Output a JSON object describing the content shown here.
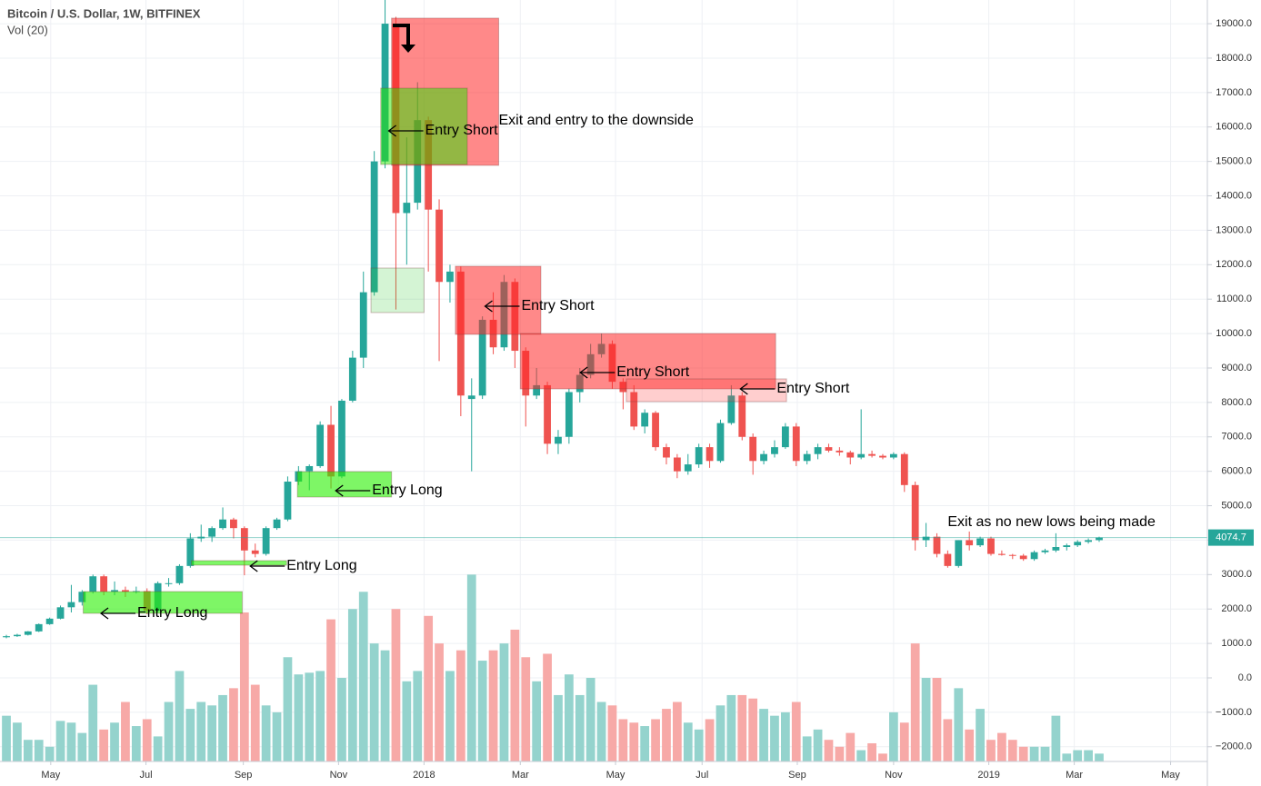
{
  "chart_data": {
    "type": "candlestick",
    "title": "Bitcoin / U.S. Dollar, 1W, BITFINEX",
    "subtitle": "Vol (20)",
    "up_color": "#26a69a",
    "down_color": "#ef5350",
    "volume_up_color": "#94d3cd",
    "volume_down_color": "#f7a9a7",
    "grid": true,
    "open": [
      1180,
      1210,
      1250,
      1350,
      1560,
      1720,
      2050,
      2200,
      2500,
      2950,
      2500,
      2550,
      2500,
      2520,
      1950,
      2750,
      2750,
      3250,
      4050,
      4100,
      4350,
      4600,
      4350,
      3700,
      3600,
      4350,
      4600,
      5700,
      6000,
      6150,
      7350,
      5850,
      8050,
      9300,
      11200,
      15000,
      19000,
      13500,
      13800,
      16200,
      13600,
      11500,
      11800,
      8100,
      8200,
      10400,
      9600,
      11500,
      9500,
      8200,
      8500,
      6800,
      7000,
      8300,
      8800,
      9400,
      9700,
      8600,
      8300,
      7300,
      7700,
      6700,
      6400,
      6000,
      6200,
      6700,
      6300,
      7400,
      8200,
      7000,
      6300,
      6500,
      6700,
      7300,
      6300,
      6500,
      6700,
      6600,
      6550,
      6400,
      6500,
      6450,
      6400,
      6500,
      5600,
      4000,
      4100,
      3600,
      3250,
      4000,
      3850,
      4050,
      3600,
      3570,
      3550,
      3450,
      3650,
      3700,
      3800,
      3850,
      3950,
      4000
    ],
    "high": [
      1250,
      1280,
      1360,
      1580,
      1750,
      2100,
      2700,
      2550,
      3000,
      3000,
      2800,
      2650,
      2650,
      2600,
      2800,
      2900,
      3300,
      4200,
      4450,
      4400,
      4950,
      4650,
      4400,
      3900,
      4400,
      4650,
      5850,
      6150,
      6200,
      7450,
      7900,
      8100,
      9500,
      11800,
      15300,
      19700,
      19200,
      15700,
      17300,
      16300,
      13900,
      12000,
      11950,
      8700,
      10500,
      11200,
      11700,
      11600,
      9600,
      9000,
      8600,
      7200,
      8400,
      9000,
      9700,
      10000,
      9800,
      8700,
      8500,
      7800,
      7750,
      6800,
      6500,
      6500,
      6800,
      6800,
      7500,
      8500,
      8300,
      7100,
      6600,
      6900,
      7400,
      7400,
      6600,
      6800,
      6800,
      6700,
      6600,
      7800,
      6600,
      6500,
      6550,
      6550,
      5700,
      4500,
      4200,
      3700,
      4000,
      4250,
      4100,
      4100,
      3700,
      3600,
      3600,
      3700,
      3750,
      4200,
      3900,
      4000,
      4050,
      4100
    ],
    "low": [
      1150,
      1190,
      1230,
      1330,
      1540,
      1700,
      1900,
      2100,
      2450,
      2400,
      2400,
      2350,
      2450,
      1850,
      1900,
      2650,
      2700,
      3200,
      3950,
      3950,
      4300,
      4050,
      2980,
      3500,
      3550,
      4300,
      4550,
      5600,
      5450,
      6100,
      5500,
      5800,
      8000,
      9000,
      11100,
      14800,
      10700,
      12000,
      13600,
      11800,
      9200,
      10900,
      7600,
      6000,
      8100,
      9400,
      9500,
      9000,
      7300,
      8100,
      6500,
      6500,
      6800,
      8000,
      8700,
      9300,
      8400,
      7800,
      7200,
      7100,
      6600,
      6200,
      5800,
      5900,
      6100,
      6100,
      6250,
      7350,
      6900,
      5900,
      6200,
      6400,
      6650,
      6150,
      6200,
      6350,
      6550,
      6450,
      6200,
      6350,
      6400,
      6350,
      6350,
      5400,
      3700,
      3800,
      3500,
      3200,
      3200,
      3700,
      3800,
      3550,
      3550,
      3450,
      3400,
      3400,
      3600,
      3650,
      3700,
      3800,
      3900,
      3950
    ],
    "close": [
      1210,
      1250,
      1350,
      1560,
      1720,
      2050,
      2200,
      2500,
      2950,
      2500,
      2550,
      2500,
      2520,
      1950,
      2750,
      2750,
      3250,
      4050,
      4100,
      4350,
      4600,
      4350,
      3700,
      3600,
      4350,
      4600,
      5700,
      6000,
      6150,
      7350,
      5850,
      8050,
      9300,
      11200,
      15000,
      19000,
      13500,
      13800,
      16200,
      13600,
      11500,
      11800,
      8200,
      8200,
      10400,
      9600,
      11500,
      9500,
      8200,
      8500,
      6800,
      7000,
      8300,
      8800,
      9400,
      9700,
      8600,
      8300,
      7300,
      7700,
      6700,
      6400,
      6000,
      6200,
      6700,
      6300,
      7400,
      8200,
      7000,
      6300,
      6500,
      6700,
      7300,
      6300,
      6500,
      6700,
      6600,
      6550,
      6400,
      6500,
      6450,
      6400,
      6500,
      5600,
      4000,
      4100,
      3600,
      3250,
      4000,
      3850,
      4050,
      3600,
      3570,
      3550,
      3450,
      3650,
      3700,
      3800,
      3850,
      3950,
      4000,
      4075
    ],
    "volume": [
      -1100,
      -1300,
      -1800,
      -1800,
      -2000,
      -1250,
      -1300,
      -1600,
      -200,
      -1500,
      -1300,
      -700,
      -1400,
      -1200,
      -1700,
      -700,
      200,
      -900,
      -700,
      -800,
      -500,
      -300,
      1900,
      -200,
      -800,
      -1000,
      600,
      100,
      150,
      200,
      1700,
      0,
      2000,
      2500,
      1000,
      800,
      2000,
      -100,
      200,
      1800,
      1000,
      200,
      800,
      3000,
      500,
      800,
      1000,
      1400,
      600,
      -100,
      700,
      -500,
      100,
      -500,
      0,
      -700,
      -800,
      -1200,
      -1300,
      -1400,
      -1200,
      -900,
      -700,
      -1300,
      -1500,
      -1200,
      -800,
      -500,
      -500,
      -600,
      -900,
      -1100,
      -1000,
      -700,
      -1700,
      -1500,
      -1800,
      -2000,
      -1600,
      -2100,
      -1900,
      -2200,
      -1000,
      -1300,
      1000,
      0,
      0,
      -1200,
      -300,
      -1500,
      -900,
      -1800,
      -1600,
      -1800,
      -2000,
      -2000,
      -2000,
      -1100,
      -2200,
      -2100,
      -2100,
      -2200
    ],
    "xlim": [
      -0.59,
      111.0
    ],
    "ylim": [
      -2428,
      19688
    ],
    "xticks": [
      {
        "value": 4.1,
        "label": "May"
      },
      {
        "value": 12.9,
        "label": "Jul"
      },
      {
        "value": 21.9,
        "label": "Sep"
      },
      {
        "value": 30.7,
        "label": "Nov"
      },
      {
        "value": 38.6,
        "label": "2018"
      },
      {
        "value": 47.5,
        "label": "Mar"
      },
      {
        "value": 56.3,
        "label": "May"
      },
      {
        "value": 64.3,
        "label": "Jul"
      },
      {
        "value": 73.1,
        "label": "Sep"
      },
      {
        "value": 82.0,
        "label": "Nov"
      },
      {
        "value": 90.8,
        "label": "2019"
      },
      {
        "value": 98.7,
        "label": "Mar"
      },
      {
        "value": 107.6,
        "label": "May"
      }
    ],
    "yticks": [
      {
        "value": -2000,
        "label": "−2000.0"
      },
      {
        "value": -1000,
        "label": "−1000.0"
      },
      {
        "value": 0,
        "label": "0.0"
      },
      {
        "value": 1000,
        "label": "1000.0"
      },
      {
        "value": 2000,
        "label": "2000.0"
      },
      {
        "value": 3000,
        "label": "3000.0"
      },
      {
        "value": 4000,
        "label": "4000.0"
      },
      {
        "value": 5000,
        "label": "5000.0"
      },
      {
        "value": 6000,
        "label": "6000.0"
      },
      {
        "value": 7000,
        "label": "7000.0"
      },
      {
        "value": 8000,
        "label": "8000.0"
      },
      {
        "value": 9000,
        "label": "9000.0"
      },
      {
        "value": 10000,
        "label": "10000.0"
      },
      {
        "value": 11000,
        "label": "11000.0"
      },
      {
        "value": 12000,
        "label": "12000.0"
      },
      {
        "value": 13000,
        "label": "13000.0"
      },
      {
        "value": 14000,
        "label": "14000.0"
      },
      {
        "value": 15000,
        "label": "15000.0"
      },
      {
        "value": 16000,
        "label": "16000.0"
      },
      {
        "value": 17000,
        "label": "17000.0"
      },
      {
        "value": 18000,
        "label": "18000.0"
      },
      {
        "value": 19000,
        "label": "19000.0"
      }
    ],
    "last_price": 4074.7,
    "boxes": [
      {
        "x": [
          35.6,
          45.5
        ],
        "y": [
          14885,
          19161
        ],
        "color": "rgba(255,40,40,0.55)"
      },
      {
        "x": [
          34.6,
          42.6
        ],
        "y": [
          14912,
          17128
        ],
        "color": "rgba(40,230,0,0.5)"
      },
      {
        "x": [
          33.7,
          38.6
        ],
        "y": [
          10610,
          11903
        ],
        "color": "rgba(40,200,40,0.2)"
      },
      {
        "x": [
          41.5,
          49.4
        ],
        "y": [
          9976,
          11956
        ],
        "color": "rgba(255,40,40,0.55)"
      },
      {
        "x": [
          47.5,
          71.1
        ],
        "y": [
          8393,
          10003
        ],
        "color": "rgba(255,40,40,0.55)"
      },
      {
        "x": [
          57.3,
          72.1
        ],
        "y": [
          8023,
          8683
        ],
        "color": "rgba(255,60,60,0.25)"
      },
      {
        "x": [
          26.9,
          35.6
        ],
        "y": [
          5252,
          5991
        ],
        "color": "rgba(40,240,0,0.6)"
      },
      {
        "x": [
          17.1,
          25.9
        ],
        "y": [
          3273,
          3405
        ],
        "color": "rgba(40,240,0,0.6)"
      },
      {
        "x": [
          7.1,
          21.8
        ],
        "y": [
          1874,
          2507
        ],
        "color": "rgba(40,240,0,0.6)"
      }
    ],
    "annotations": [
      {
        "text": "Exit and entry to the downside",
        "x": 45.5,
        "y": 16178,
        "arrow": false
      },
      {
        "text": "Entry Short",
        "x": 38.7,
        "y": 15888,
        "arrow": true
      },
      {
        "text": "Entry Short",
        "x": 47.6,
        "y": 10794,
        "arrow": true
      },
      {
        "text": "Entry Short",
        "x": 56.4,
        "y": 8868,
        "arrow": true
      },
      {
        "text": "Entry Short",
        "x": 71.2,
        "y": 8393,
        "arrow": true
      },
      {
        "text": "Entry Long",
        "x": 33.8,
        "y": 5437,
        "arrow": true
      },
      {
        "text": "Entry Long",
        "x": 25.9,
        "y": 3246,
        "arrow": true
      },
      {
        "text": "Entry Long",
        "x": 12.1,
        "y": 1874,
        "arrow": true
      },
      {
        "text": "Exit as no new lows being made",
        "x": 87.0,
        "y": 4513,
        "arrow": false
      }
    ]
  }
}
